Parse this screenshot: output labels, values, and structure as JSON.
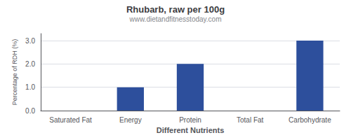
{
  "chart_data": {
    "type": "bar",
    "title": "Rhubarb, raw per 100g",
    "subtitle": "www.dietandfitnesstoday.com",
    "xlabel": "Different Nutrients",
    "ylabel": "Percentage of RDH (%)",
    "categories": [
      "Saturated Fat",
      "Energy",
      "Protein",
      "Total Fat",
      "Carbohydrate"
    ],
    "values": [
      0.0,
      1.0,
      2.0,
      0.0,
      3.0
    ],
    "color": "#2d4f9c",
    "ylim": [
      0,
      3.3
    ],
    "yticks": [
      {
        "value": 0,
        "label": "0.0"
      },
      {
        "value": 1,
        "label": "1.0"
      },
      {
        "value": 2,
        "label": "2.0"
      },
      {
        "value": 3,
        "label": "3.0"
      }
    ],
    "grid": true
  }
}
